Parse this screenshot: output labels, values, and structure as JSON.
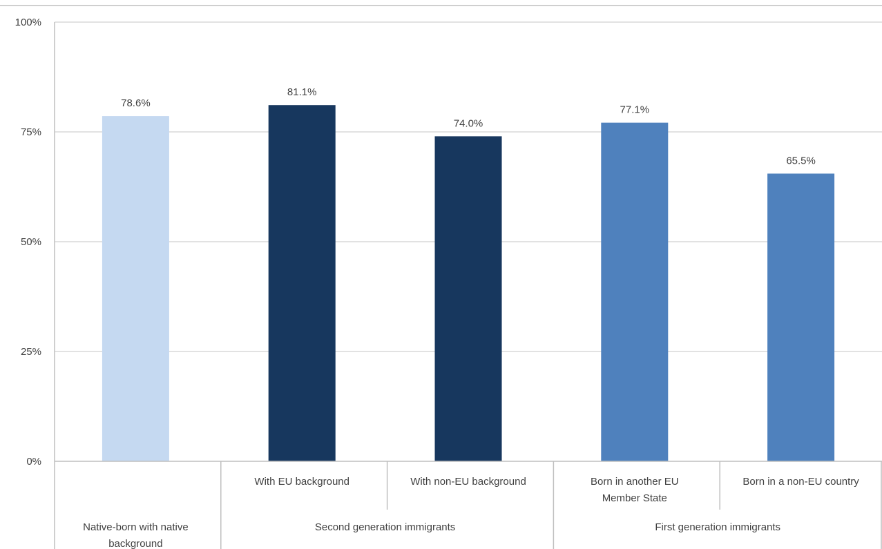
{
  "chart_data": {
    "type": "bar",
    "title": "",
    "xlabel": "",
    "ylabel": "",
    "ylim": [
      0,
      100
    ],
    "yticks": [
      "0%",
      "25%",
      "50%",
      "75%",
      "100%"
    ],
    "grid": true,
    "categories": [
      "Native-born with native background",
      "With EU background",
      "With non-EU background",
      "Born in another EU Member State",
      "Born in a non-EU country"
    ],
    "category_lines": [
      [
        "Native-born with native",
        "background"
      ],
      [
        "With EU background"
      ],
      [
        "With non-EU background"
      ],
      [
        "Born in another EU",
        "Member State"
      ],
      [
        "Born in a non-EU country"
      ]
    ],
    "groups": [
      {
        "label": "",
        "members": [
          0
        ]
      },
      {
        "label": "Second generation immigrants",
        "members": [
          1,
          2
        ]
      },
      {
        "label": "First generation immigrants",
        "members": [
          3,
          4
        ]
      }
    ],
    "values": [
      78.6,
      81.1,
      74.0,
      77.1,
      65.5
    ],
    "data_labels": [
      "78.6%",
      "81.1%",
      "74.0%",
      "77.1%",
      "65.5%"
    ],
    "colors": [
      "#c5d9f1",
      "#17375e",
      "#17375e",
      "#4f81bd",
      "#4f81bd"
    ]
  }
}
